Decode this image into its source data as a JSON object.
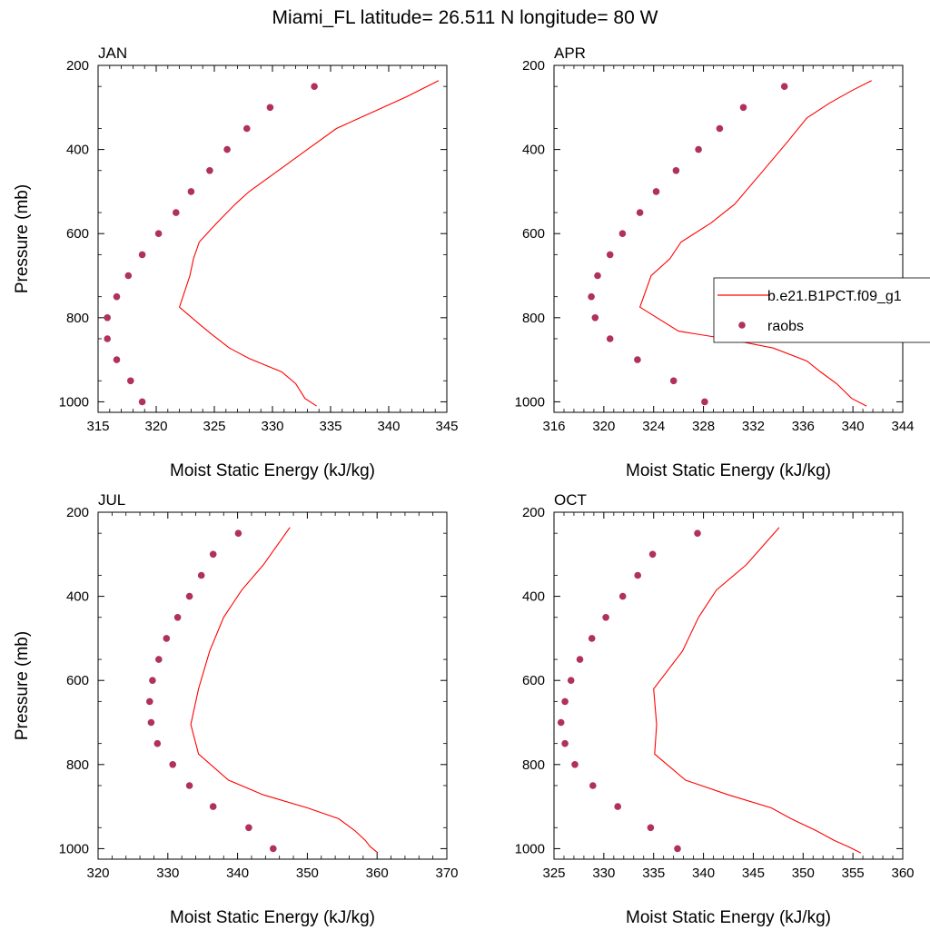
{
  "title": "Miami_FL  latitude= 26.511 N longitude= 80 W",
  "legend": {
    "placement": "right",
    "model_label": "b.e21.B1PCT.f09_g1",
    "obs_label": "raobs"
  },
  "colors": {
    "model_line": "#ff0000",
    "obs_marker": "#b03060"
  },
  "chart_data": [
    {
      "type": "line",
      "panel_title": "JAN",
      "xlabel": "Moist Static Energy (kJ/kg)",
      "ylabel": "Pressure (mb)",
      "xlim": [
        315,
        345
      ],
      "ylim": [
        200,
        1025
      ],
      "y_reversed": true,
      "xticks": [
        315,
        320,
        325,
        330,
        335,
        340,
        345
      ],
      "yticks": [
        200,
        400,
        600,
        800,
        1000
      ],
      "series": [
        {
          "kind": "line",
          "points": [
            [
              344.3,
              236
            ],
            [
              341.5,
              275
            ],
            [
              337.5,
              325
            ],
            [
              335.5,
              350
            ],
            [
              333.0,
              400
            ],
            [
              330.5,
              450
            ],
            [
              328.0,
              500
            ],
            [
              326.8,
              530
            ],
            [
              325.2,
              575
            ],
            [
              323.7,
              620
            ],
            [
              323.2,
              660
            ],
            [
              322.9,
              700
            ],
            [
              322.0,
              775
            ],
            [
              323.7,
              815
            ],
            [
              324.8,
              840
            ],
            [
              326.3,
              872
            ],
            [
              328.0,
              897
            ],
            [
              330.8,
              929
            ],
            [
              332.0,
              957
            ],
            [
              332.8,
              992
            ],
            [
              333.8,
              1010
            ]
          ]
        },
        {
          "kind": "scatter",
          "points": [
            [
              333.6,
              250
            ],
            [
              329.8,
              300
            ],
            [
              327.8,
              350
            ],
            [
              326.1,
              400
            ],
            [
              324.6,
              450
            ],
            [
              323.0,
              500
            ],
            [
              321.7,
              550
            ],
            [
              320.2,
              600
            ],
            [
              318.8,
              650
            ],
            [
              317.6,
              700
            ],
            [
              316.6,
              750
            ],
            [
              315.8,
              800
            ],
            [
              315.8,
              850
            ],
            [
              316.6,
              900
            ],
            [
              317.8,
              950
            ],
            [
              318.8,
              1000
            ]
          ]
        }
      ]
    },
    {
      "type": "line",
      "panel_title": "APR",
      "xlabel": "Moist Static Energy (kJ/kg)",
      "ylabel": "",
      "xlim": [
        316,
        344
      ],
      "ylim": [
        200,
        1025
      ],
      "y_reversed": true,
      "xticks": [
        316,
        320,
        324,
        328,
        332,
        336,
        340,
        344
      ],
      "yticks": [
        200,
        400,
        600,
        800,
        1000
      ],
      "series": [
        {
          "kind": "line",
          "points": [
            [
              341.5,
              236
            ],
            [
              339.9,
              260
            ],
            [
              338.1,
              290
            ],
            [
              336.3,
              325
            ],
            [
              334.8,
              380
            ],
            [
              332.8,
              450
            ],
            [
              330.5,
              530
            ],
            [
              328.6,
              575
            ],
            [
              326.2,
              620
            ],
            [
              325.3,
              660
            ],
            [
              323.8,
              700
            ],
            [
              322.9,
              775
            ],
            [
              326.0,
              832
            ],
            [
              329.8,
              850
            ],
            [
              333.6,
              872
            ],
            [
              336.3,
              903
            ],
            [
              337.4,
              929
            ],
            [
              338.7,
              957
            ],
            [
              339.9,
              992
            ],
            [
              341.1,
              1010
            ]
          ]
        },
        {
          "kind": "scatter",
          "points": [
            [
              334.5,
              250
            ],
            [
              331.2,
              300
            ],
            [
              329.3,
              350
            ],
            [
              327.6,
              400
            ],
            [
              325.8,
              450
            ],
            [
              324.2,
              500
            ],
            [
              322.9,
              550
            ],
            [
              321.5,
              600
            ],
            [
              320.5,
              650
            ],
            [
              319.5,
              700
            ],
            [
              319.0,
              750
            ],
            [
              319.3,
              800
            ],
            [
              320.5,
              850
            ],
            [
              322.7,
              900
            ],
            [
              325.6,
              950
            ],
            [
              328.1,
              1000
            ]
          ]
        }
      ]
    },
    {
      "type": "line",
      "panel_title": "JUL",
      "xlabel": "Moist Static Energy (kJ/kg)",
      "ylabel": "Pressure (mb)",
      "xlim": [
        320,
        370
      ],
      "ylim": [
        200,
        1025
      ],
      "y_reversed": true,
      "xticks": [
        320,
        330,
        340,
        350,
        360,
        370
      ],
      "yticks": [
        200,
        400,
        600,
        800,
        1000
      ],
      "series": [
        {
          "kind": "line",
          "points": [
            [
              347.5,
              236
            ],
            [
              343.7,
              325
            ],
            [
              340.6,
              385
            ],
            [
              338.0,
              450
            ],
            [
              336.0,
              530
            ],
            [
              334.4,
              620
            ],
            [
              333.3,
              705
            ],
            [
              334.4,
              775
            ],
            [
              338.7,
              837
            ],
            [
              343.7,
              872
            ],
            [
              350.0,
              903
            ],
            [
              354.5,
              929
            ],
            [
              356.8,
              957
            ],
            [
              358.3,
              980
            ],
            [
              359.0,
              995
            ],
            [
              360.1,
              1010
            ]
          ]
        },
        {
          "kind": "scatter",
          "points": [
            [
              340.1,
              250
            ],
            [
              336.5,
              300
            ],
            [
              334.8,
              350
            ],
            [
              333.1,
              400
            ],
            [
              331.4,
              450
            ],
            [
              329.8,
              500
            ],
            [
              328.7,
              550
            ],
            [
              327.8,
              600
            ],
            [
              327.4,
              650
            ],
            [
              327.6,
              700
            ],
            [
              328.5,
              750
            ],
            [
              330.7,
              800
            ],
            [
              333.1,
              850
            ],
            [
              336.5,
              900
            ],
            [
              341.6,
              950
            ],
            [
              345.1,
              1000
            ]
          ]
        }
      ]
    },
    {
      "type": "line",
      "panel_title": "OCT",
      "xlabel": "Moist Static Energy (kJ/kg)",
      "ylabel": "",
      "xlim": [
        325,
        360
      ],
      "ylim": [
        200,
        1025
      ],
      "y_reversed": true,
      "xticks": [
        325,
        330,
        335,
        340,
        345,
        350,
        355,
        360
      ],
      "yticks": [
        200,
        400,
        600,
        800,
        1000
      ],
      "series": [
        {
          "kind": "line",
          "points": [
            [
              347.6,
              236
            ],
            [
              344.3,
              325
            ],
            [
              341.3,
              385
            ],
            [
              339.5,
              450
            ],
            [
              337.9,
              530
            ],
            [
              335.0,
              620
            ],
            [
              335.3,
              705
            ],
            [
              335.1,
              775
            ],
            [
              338.2,
              837
            ],
            [
              342.5,
              872
            ],
            [
              346.8,
              903
            ],
            [
              348.8,
              929
            ],
            [
              351.3,
              957
            ],
            [
              353.1,
              980
            ],
            [
              354.5,
              995
            ],
            [
              355.8,
              1010
            ]
          ]
        },
        {
          "kind": "scatter",
          "points": [
            [
              339.4,
              250
            ],
            [
              334.9,
              300
            ],
            [
              333.4,
              350
            ],
            [
              331.9,
              400
            ],
            [
              330.2,
              450
            ],
            [
              328.8,
              500
            ],
            [
              327.6,
              550
            ],
            [
              326.7,
              600
            ],
            [
              326.1,
              650
            ],
            [
              325.7,
              700
            ],
            [
              326.1,
              750
            ],
            [
              327.1,
              800
            ],
            [
              328.9,
              850
            ],
            [
              331.4,
              900
            ],
            [
              334.7,
              950
            ],
            [
              337.4,
              1000
            ]
          ]
        }
      ]
    }
  ]
}
